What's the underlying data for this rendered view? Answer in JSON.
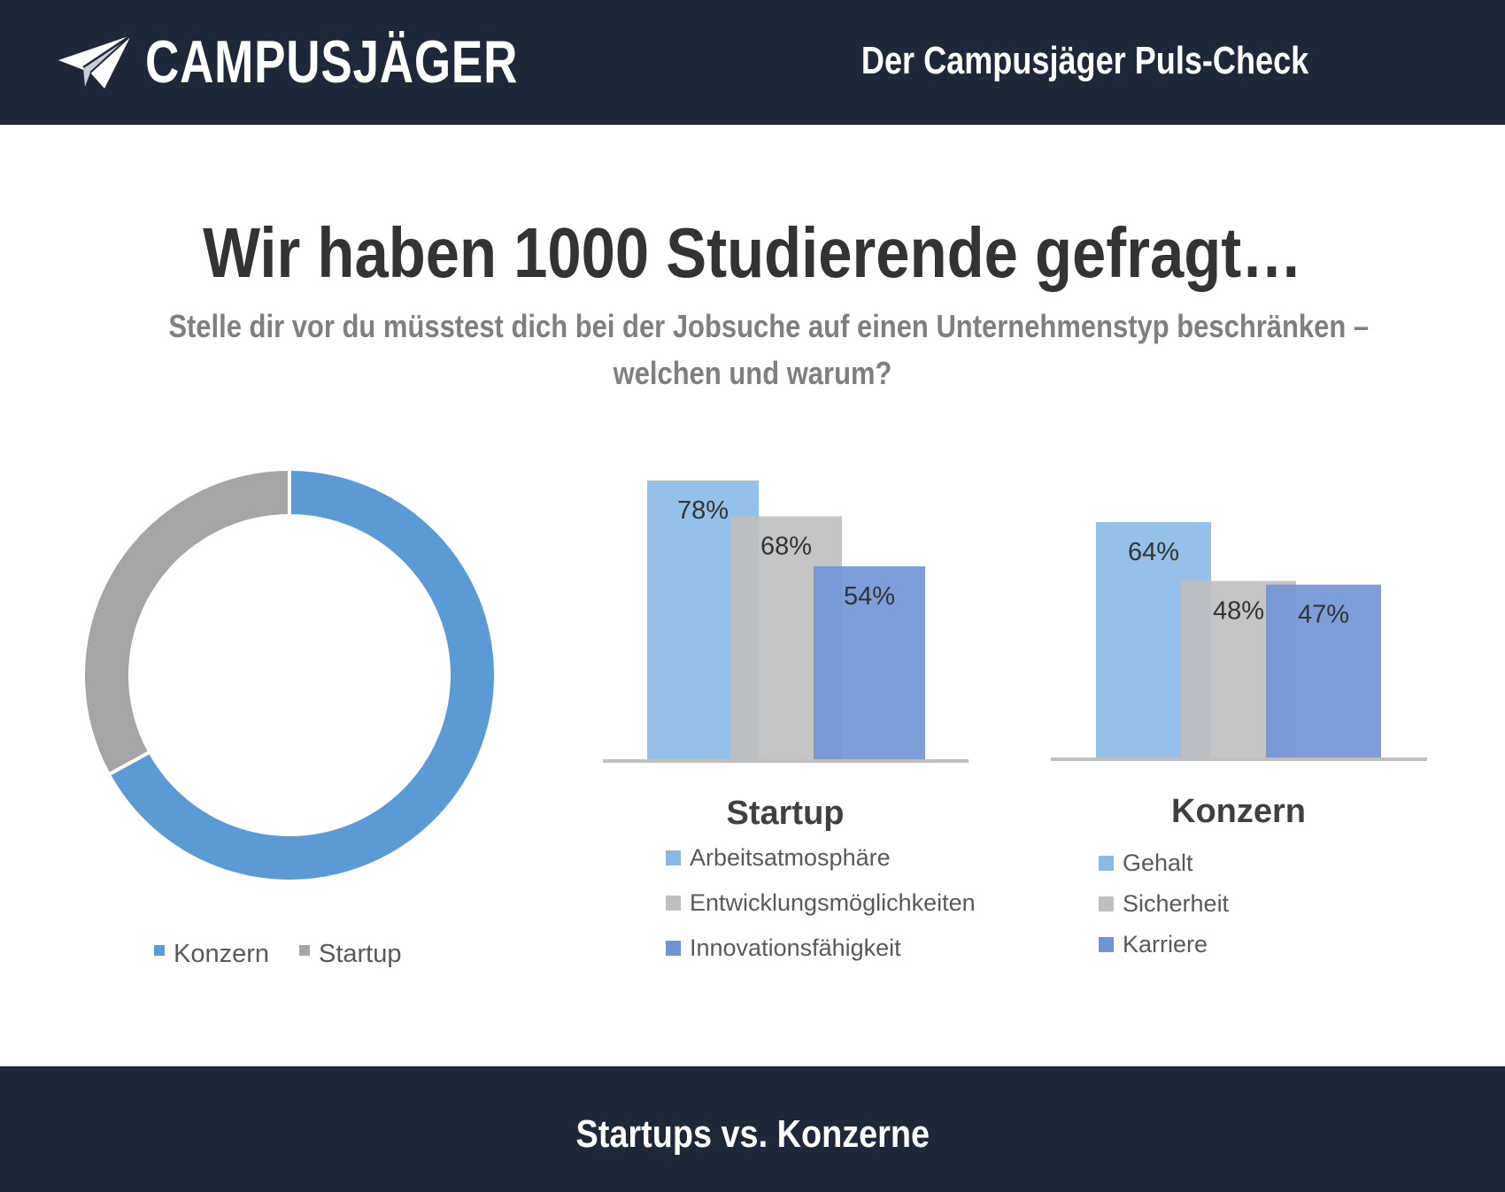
{
  "header": {
    "logo_text": "CAMPUSJÄGER",
    "tagline": "Der Campusjäger  Puls-Check",
    "logo_icon": "paper-plane-icon"
  },
  "title": "Wir haben 1000 Studierende gefragt…",
  "subtitle_line1": "Stelle dir vor du müsstest dich bei der Jobsuche auf einen Unternehmenstyp beschränken –",
  "subtitle_line2": "welchen und warum?",
  "footer": {
    "text": "Startups vs. Konzerne"
  },
  "colors": {
    "navy": "#1e2838",
    "konzern_blue": "#5b9bd5",
    "startup_gray": "#a5a5a5",
    "bar_light_blue": "#8ab9e4",
    "bar_gray": "#bfbfbf",
    "bar_dark_blue": "#6f94d6"
  },
  "chart_data": [
    {
      "type": "pie",
      "subtype": "donut",
      "title": "",
      "categories": [
        "Konzern",
        "Startup"
      ],
      "values": [
        67,
        33
      ],
      "colors": [
        "#5b9bd5",
        "#a5a5a5"
      ],
      "legend": "bottom"
    },
    {
      "type": "bar",
      "title": "Startup",
      "categories": [
        "Arbeitsatmosphäre",
        "Entwicklungsmöglichkeiten",
        "Innovationsfähigkeit"
      ],
      "values": [
        78,
        68,
        54
      ],
      "data_labels": [
        "78%",
        "68%",
        "54%"
      ],
      "colors": [
        "#8ab9e4",
        "#bfbfbf",
        "#6f94d6"
      ],
      "ylim": [
        0,
        78
      ],
      "legend": "bottom"
    },
    {
      "type": "bar",
      "title": "Konzern",
      "categories": [
        "Gehalt",
        "Sicherheit",
        "Karriere"
      ],
      "values": [
        64,
        48,
        47
      ],
      "data_labels": [
        "64%",
        "48%",
        "47%"
      ],
      "colors": [
        "#8ab9e4",
        "#bfbfbf",
        "#6f94d6"
      ],
      "ylim": [
        0,
        64
      ],
      "legend": "bottom"
    }
  ]
}
